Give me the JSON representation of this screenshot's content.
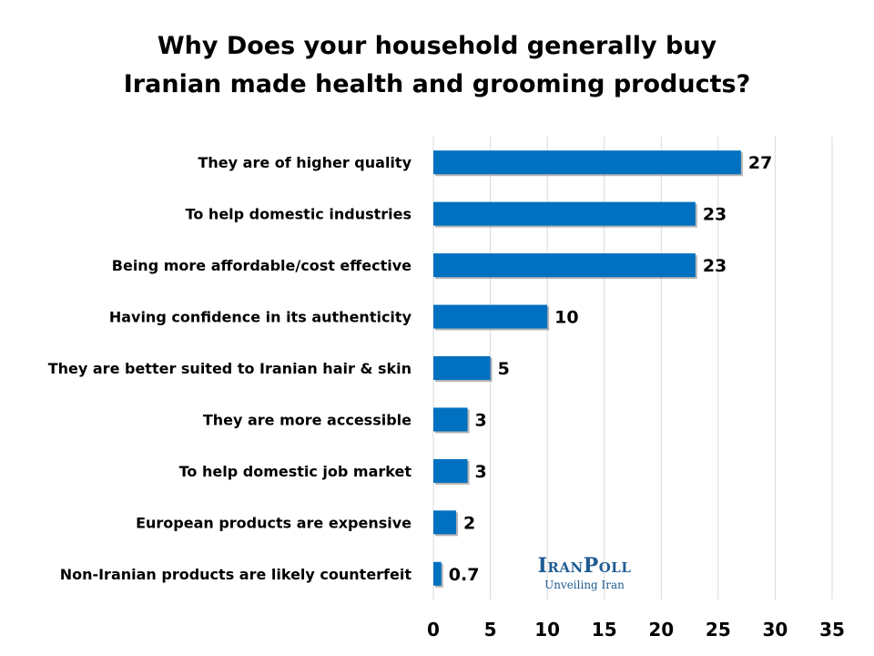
{
  "chart_data": {
    "type": "bar",
    "orientation": "horizontal",
    "title": [
      "Why Does your household generally buy",
      "Iranian made health and grooming products?"
    ],
    "categories": [
      "They are of higher quality",
      "To help domestic industries",
      "Being more affordable/cost effective",
      "Having confidence in its authenticity",
      "They are better suited to Iranian hair & skin",
      "They are more accessible",
      "To help domestic job market",
      "European products are expensive",
      "Non-Iranian products are likely counterfeit"
    ],
    "values": [
      27,
      23,
      23,
      10,
      5,
      3,
      3,
      2,
      0.7
    ],
    "value_labels": [
      "27",
      "23",
      "23",
      "10",
      "5",
      "3",
      "3",
      "2",
      "0.7"
    ],
    "xlim": [
      0,
      35
    ],
    "xticks": [
      0,
      5,
      10,
      15,
      20,
      25,
      30,
      35
    ],
    "grid": "vertical",
    "bar_color": "#0070c0",
    "legend": "none"
  },
  "logo": {
    "name": "IranPoll",
    "tagline": "Unveiling Iran",
    "color": "#1f5c93"
  }
}
